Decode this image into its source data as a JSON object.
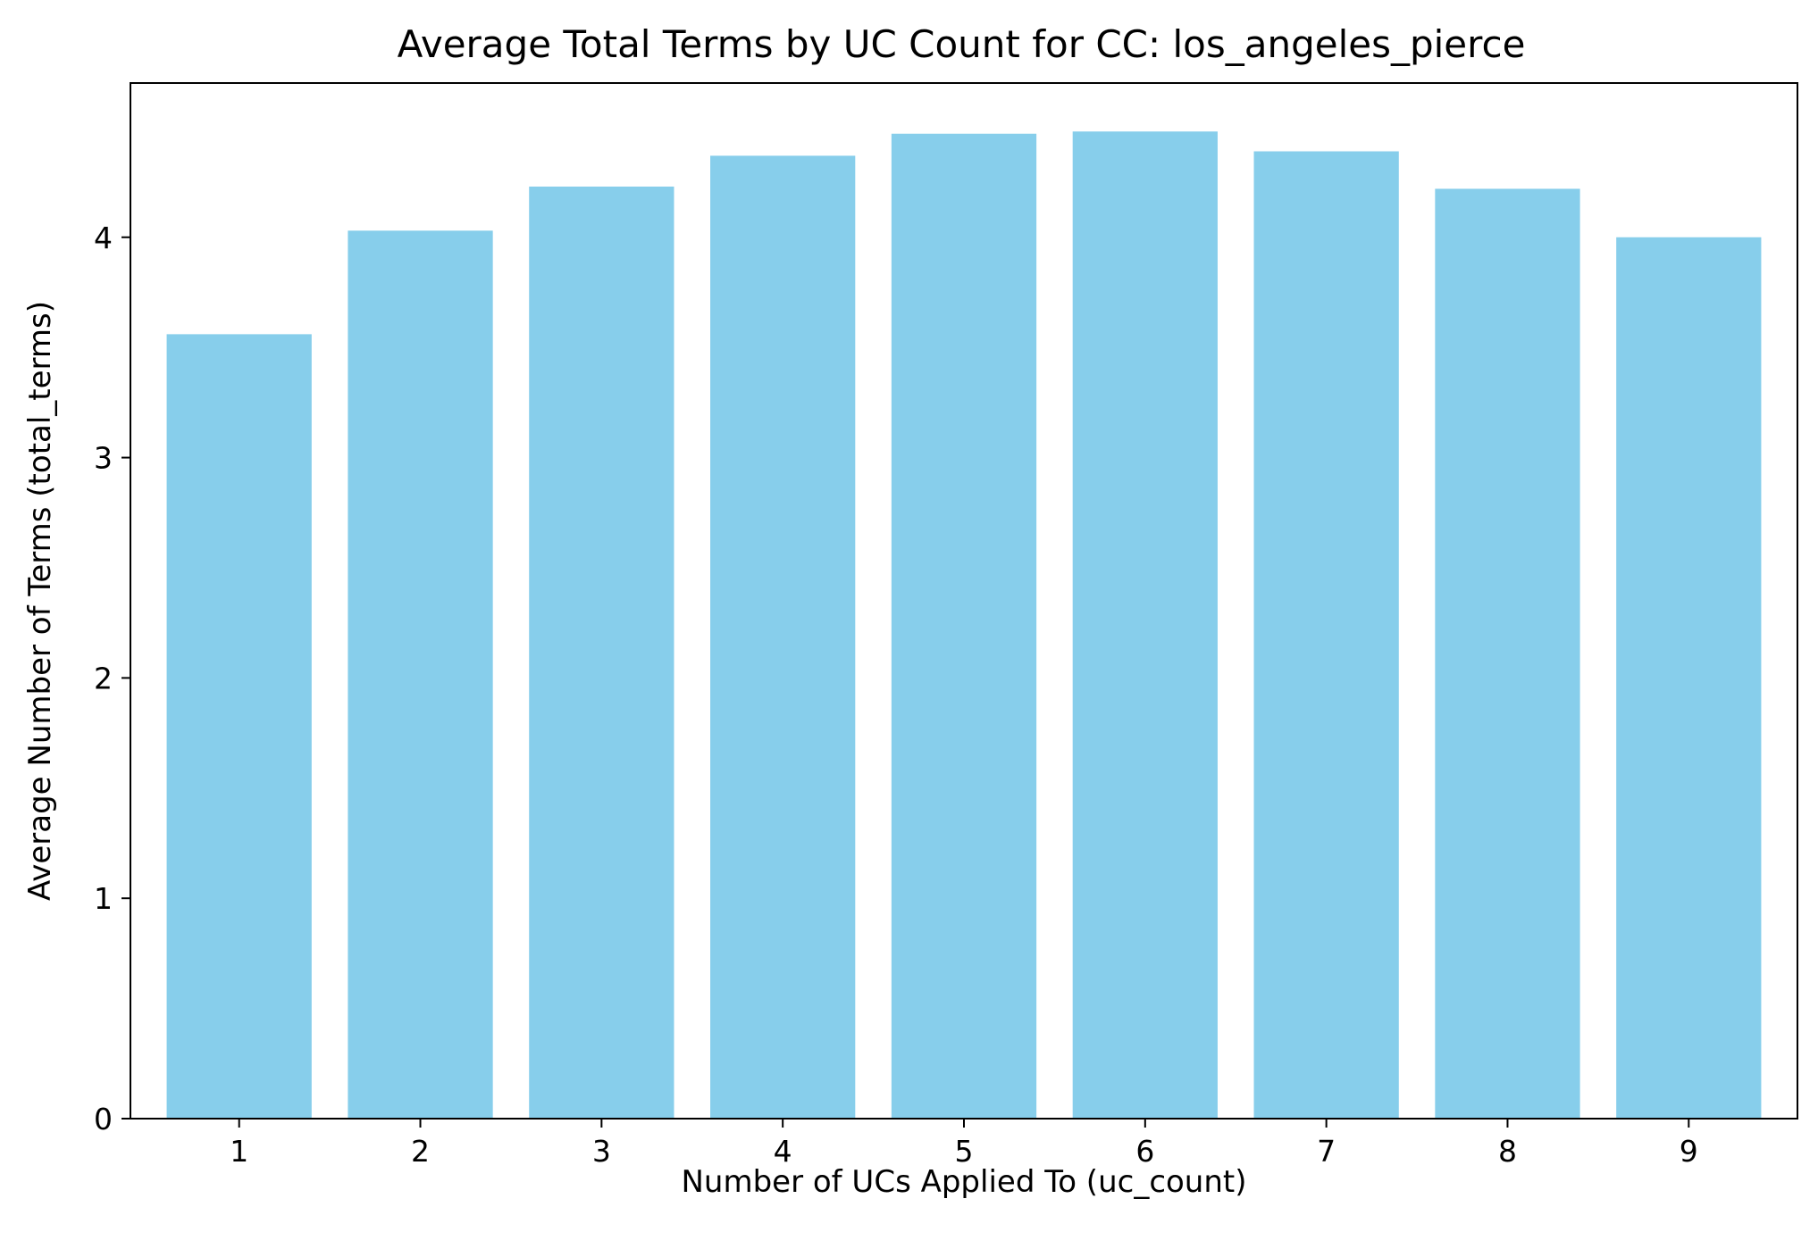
{
  "chart_data": {
    "type": "bar",
    "title": "Average Total Terms by UC Count for CC: los_angeles_pierce",
    "xlabel": "Number of UCs Applied To (uc_count)",
    "ylabel": "Average Number of Terms (total_terms)",
    "categories": [
      "1",
      "2",
      "3",
      "4",
      "5",
      "6",
      "7",
      "8",
      "9"
    ],
    "values": [
      3.56,
      4.03,
      4.23,
      4.37,
      4.47,
      4.48,
      4.39,
      4.22,
      4.0
    ],
    "ylim": [
      0,
      4.7
    ],
    "yticks": [
      "0",
      "1",
      "2",
      "3",
      "4"
    ],
    "grid": false,
    "legend": "none",
    "bar_color": "#87CEEB"
  }
}
